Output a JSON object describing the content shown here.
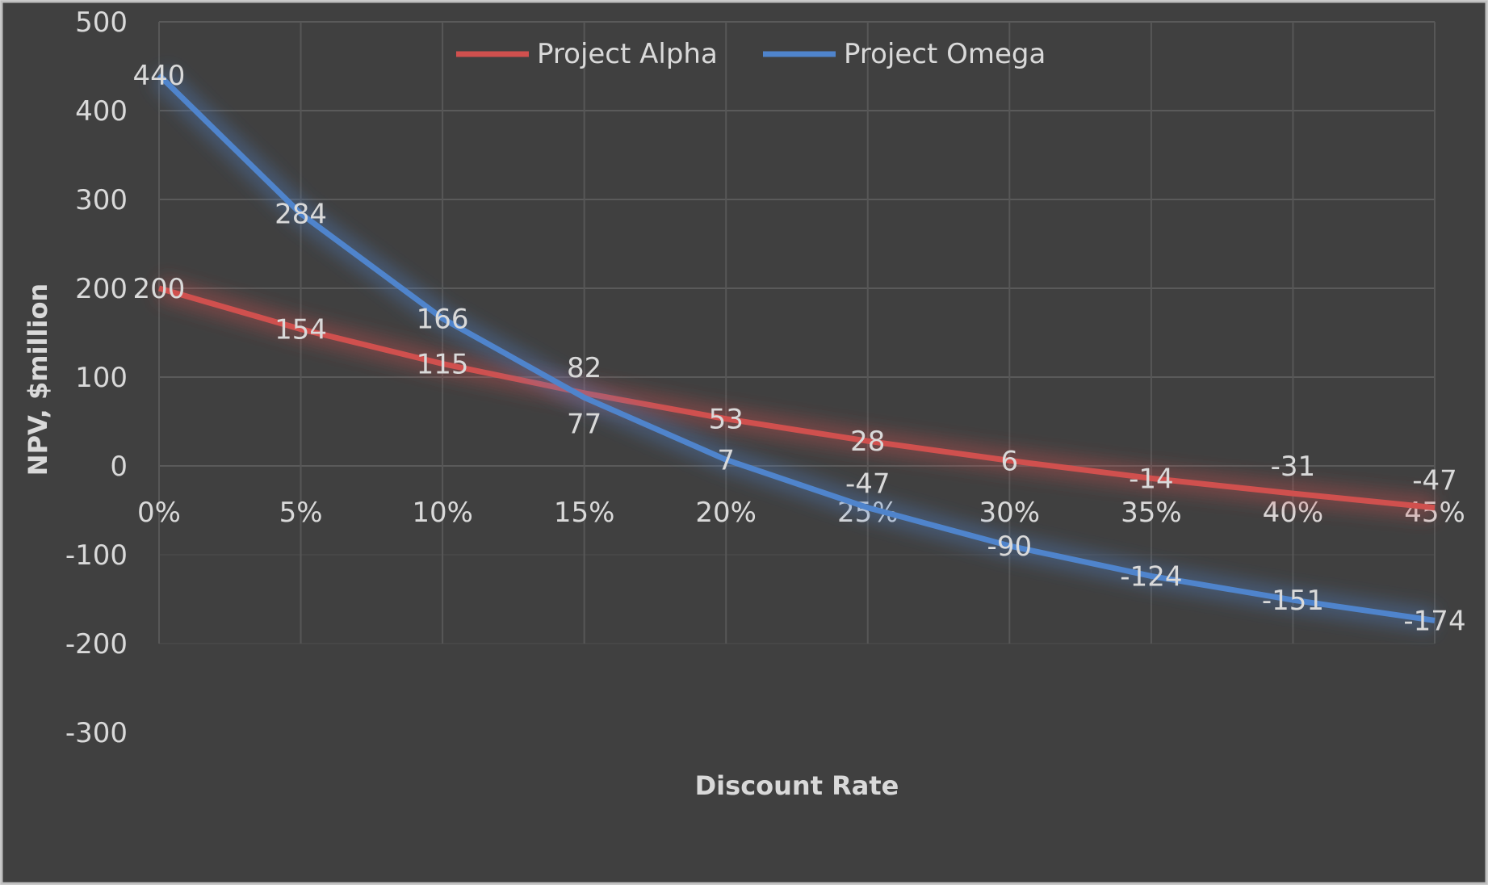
{
  "chart_data": {
    "type": "line",
    "title": "",
    "xlabel": "Discount Rate",
    "ylabel": "NPV, $million",
    "categories": [
      "0%",
      "5%",
      "10%",
      "15%",
      "20%",
      "25%",
      "30%",
      "35%",
      "40%",
      "45%"
    ],
    "ylim": [
      -300,
      500
    ],
    "yticks": [
      "500",
      "400",
      "300",
      "200",
      "100",
      "0",
      "-100",
      "-200",
      "-300"
    ],
    "grid": true,
    "legend": "top-center",
    "series": [
      {
        "name": "Project Alpha",
        "color": "#d0504e",
        "values": [
          200,
          154,
          115,
          82,
          53,
          28,
          6,
          -14,
          -31,
          -47
        ]
      },
      {
        "name": "Project Omega",
        "color": "#4f84cc",
        "values": [
          440,
          284,
          166,
          77,
          7,
          -47,
          -90,
          -124,
          -151,
          -174
        ]
      }
    ],
    "background": "#404040"
  }
}
